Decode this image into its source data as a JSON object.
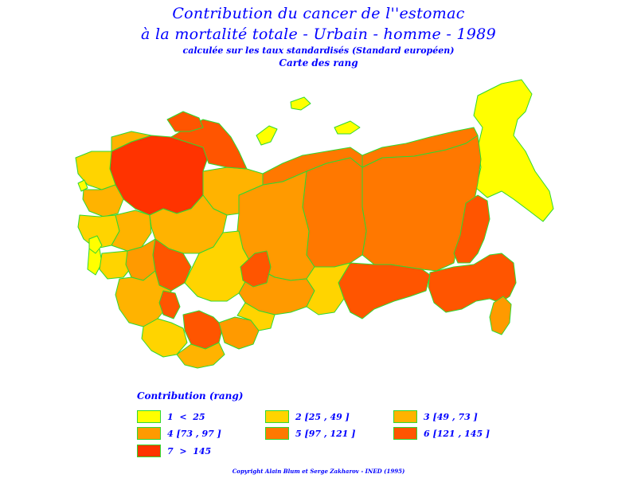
{
  "title": {
    "line1": "Contribution du cancer de l''estomac",
    "line2": "à la mortalité totale - Urbain - homme - 1989",
    "line3": "calculée sur les taux standardisés (Standard européen)",
    "line4": "Carte des rang"
  },
  "colors": {
    "border": "#30d830",
    "rank1": "#ffff00",
    "rank2": "#ffd400",
    "rank3": "#ffb300",
    "rank4": "#ff9a00",
    "rank5": "#ff7800",
    "rank6": "#ff5500",
    "rank7": "#ff3300"
  },
  "legend": {
    "title": "Contribution  (rang)",
    "items": [
      {
        "label": "1  <  25",
        "color": "#ffff00"
      },
      {
        "label": "2 [25 , 49 ]",
        "color": "#ffd400"
      },
      {
        "label": "3 [49 , 73 ]",
        "color": "#ffb300"
      },
      {
        "label": "4 [73 , 97 ]",
        "color": "#ff9a00"
      },
      {
        "label": "5 [97 , 121 ]",
        "color": "#ff7800"
      },
      {
        "label": "6 [121 , 145 ]",
        "color": "#ff5500"
      },
      {
        "label": "7  >  145",
        "color": "#ff3300"
      }
    ]
  },
  "copyright": "Copyright Alain Blum et Serge Zakharov - INED (1995)"
}
